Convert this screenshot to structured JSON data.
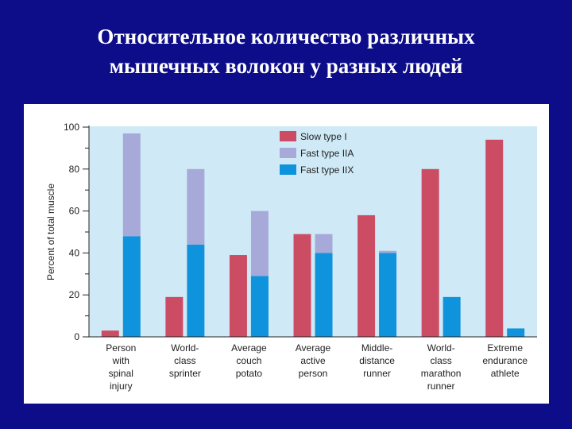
{
  "slide": {
    "title_line1": "Относительное количество различных",
    "title_line2": "мышечных волокон у разных людей"
  },
  "colors": {
    "background": "#0d0d8a",
    "plot_area": "#cfeaf6",
    "slow_type_I": "#cc4d63",
    "fast_type_IIA": "#a7a9d8",
    "fast_type_IIX": "#0f93dc"
  },
  "chart_data": {
    "type": "bar",
    "stacked_second_column": true,
    "ylabel": "Percent of total muscle",
    "ylim": [
      0,
      100
    ],
    "yticks": [
      "0",
      "20",
      "40",
      "60",
      "80",
      "100"
    ],
    "categories": [
      [
        "Person",
        "with",
        "spinal",
        "injury"
      ],
      [
        "World-",
        "class",
        "sprinter"
      ],
      [
        "Average",
        "couch",
        "potato"
      ],
      [
        "Average",
        "active",
        "person"
      ],
      [
        "Middle-",
        "distance",
        "runner"
      ],
      [
        "World-",
        "class",
        "marathon",
        "runner"
      ],
      [
        "Extreme",
        "endurance",
        "athlete"
      ]
    ],
    "series": [
      {
        "name": "Slow type I",
        "values": [
          3,
          19,
          39,
          49,
          58,
          80,
          94
        ]
      },
      {
        "name": "Fast type IIA",
        "values": [
          49,
          36,
          31,
          9,
          1,
          0,
          0
        ]
      },
      {
        "name": "Fast type IIX",
        "values": [
          48,
          44,
          29,
          40,
          40,
          19,
          4
        ]
      }
    ],
    "legend_position": "top-right",
    "grid": false
  }
}
